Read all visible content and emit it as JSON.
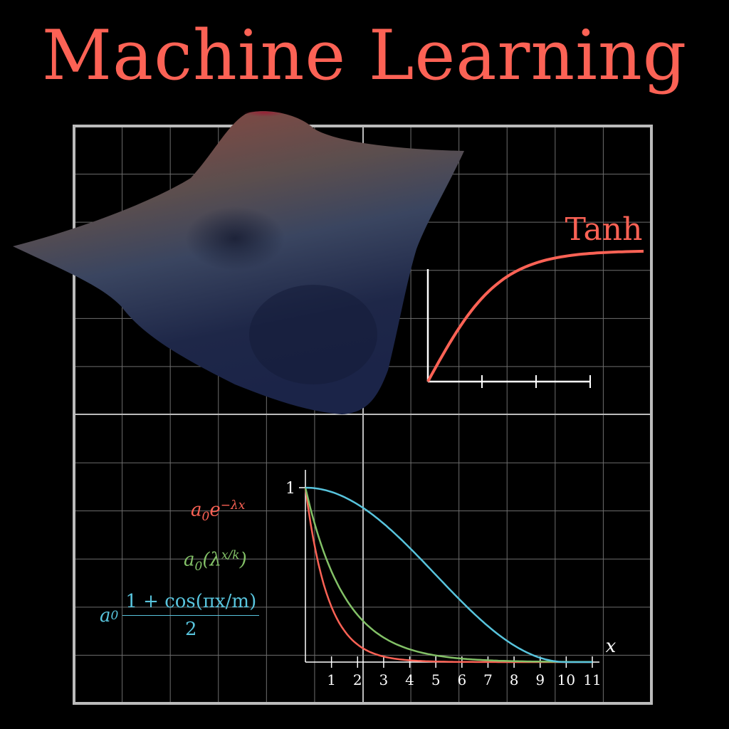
{
  "title": "Machine Learning",
  "colors": {
    "red": "#fc6255",
    "green": "#83c167",
    "blue": "#58c4dd",
    "grid": "#6e6e6e",
    "frame": "#bbbbbb"
  },
  "tanh": {
    "label": "Tanh"
  },
  "decay": {
    "y_tick_label": "1",
    "x_axis_label": "x",
    "x_ticks": [
      "1",
      "2",
      "3",
      "4",
      "5",
      "6",
      "7",
      "8",
      "9",
      "10",
      "11"
    ]
  },
  "formulas": {
    "exponential": {
      "coef": "a",
      "coef_sub": "0",
      "base": "e",
      "exp": "−λx"
    },
    "power": {
      "coef": "a",
      "coef_sub": "0",
      "body": "(λ",
      "exp": "x/k",
      "close": ")"
    },
    "cosine": {
      "coef": "a",
      "coef_sub": "0",
      "numerator": "1 + cos(πx/m)",
      "denominator": "2"
    }
  },
  "chart_data": [
    {
      "type": "line",
      "title": "Tanh",
      "series": [
        {
          "name": "Tanh",
          "x": [
            0,
            0.5,
            1,
            1.5,
            2,
            2.5,
            3
          ],
          "values": [
            0,
            0.46,
            0.76,
            0.91,
            0.96,
            0.99,
            1.0
          ]
        }
      ],
      "xlim": [
        0,
        3
      ],
      "ylim": [
        0,
        1
      ],
      "grid": false
    },
    {
      "type": "line",
      "xlabel": "x",
      "ylabel": "",
      "xlim": [
        0,
        11
      ],
      "ylim": [
        0,
        1
      ],
      "x_ticks": [
        1,
        2,
        3,
        4,
        5,
        6,
        7,
        8,
        9,
        10,
        11
      ],
      "y_ticks": [
        1
      ],
      "series": [
        {
          "formula": "a0 e^(−λx)",
          "color": "#fc6255",
          "x": [
            0,
            0.5,
            1,
            1.5,
            2,
            2.5,
            3,
            4,
            5,
            6,
            8,
            11
          ],
          "values": [
            1.0,
            0.55,
            0.32,
            0.18,
            0.1,
            0.06,
            0.035,
            0.012,
            0.005,
            0.002,
            0.0005,
            0.0
          ]
        },
        {
          "formula": "a0(λ^(x/k))",
          "color": "#83c167",
          "x": [
            0,
            0.5,
            1,
            1.5,
            2,
            3,
            4,
            5,
            6,
            7,
            8,
            9,
            10,
            11
          ],
          "values": [
            1.0,
            0.72,
            0.52,
            0.38,
            0.28,
            0.16,
            0.09,
            0.055,
            0.035,
            0.022,
            0.014,
            0.009,
            0.006,
            0.004
          ]
        },
        {
          "formula": "a0(1+cos(πx/m))/2",
          "color": "#58c4dd",
          "x": [
            0,
            1,
            2,
            3,
            4,
            5,
            6,
            7,
            8,
            9,
            10,
            11
          ],
          "values": [
            1.0,
            0.97,
            0.88,
            0.74,
            0.58,
            0.42,
            0.26,
            0.13,
            0.05,
            0.01,
            0.0,
            0.0
          ]
        }
      ],
      "grid": true
    }
  ]
}
